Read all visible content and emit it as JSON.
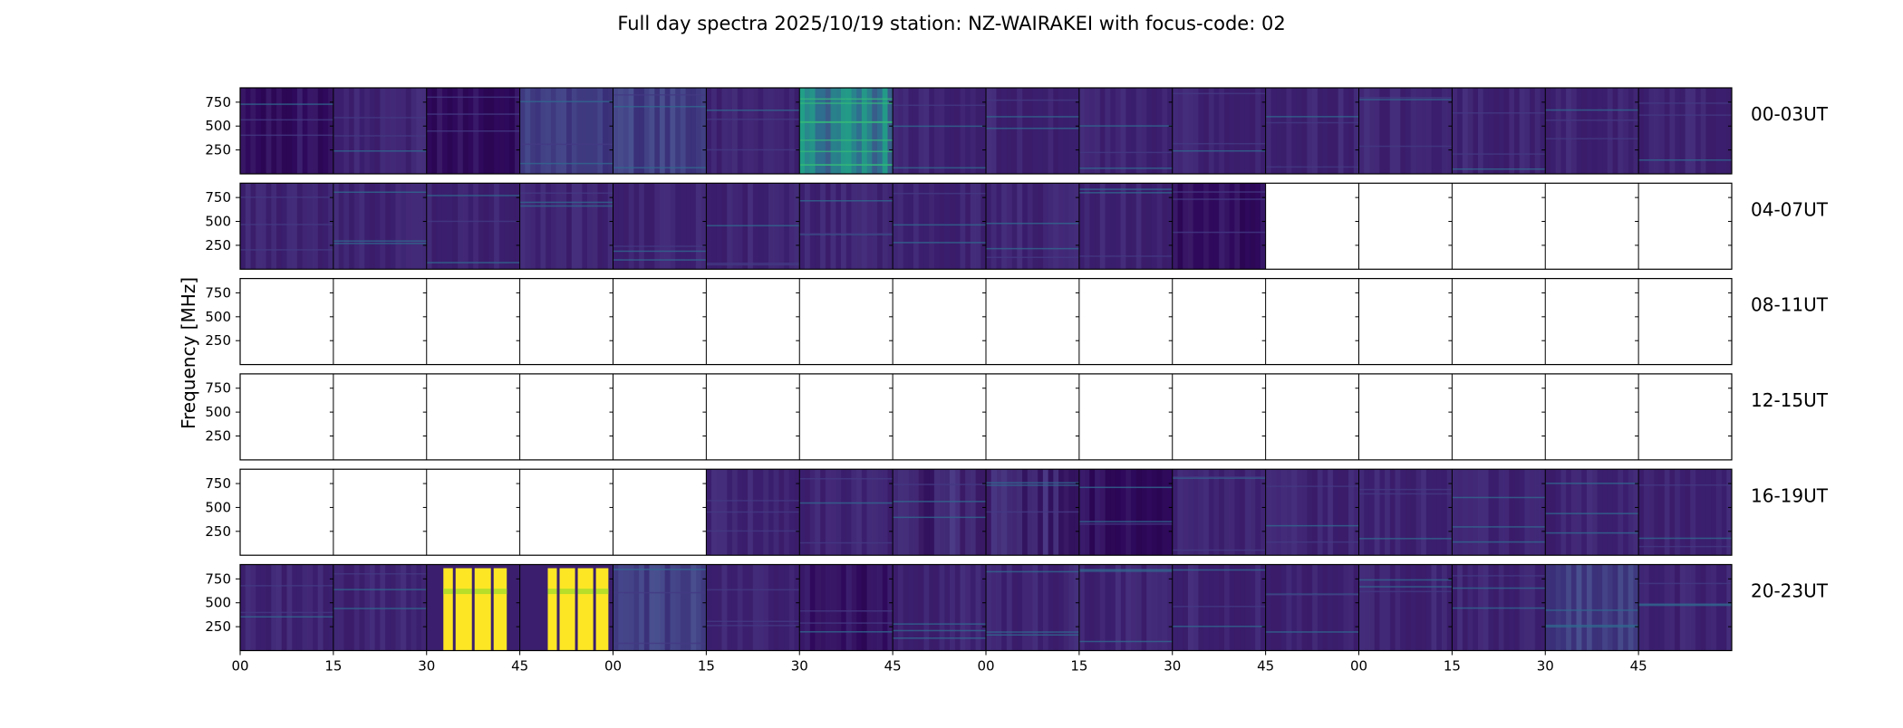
{
  "chart_data": {
    "type": "heatmap",
    "title": "Full day spectra 2025/10/19 station: NZ-WAIRAKEI with focus-code: 02",
    "ylabel": "Frequency [MHz]",
    "xlabel": "",
    "colormap": "viridis",
    "ylim": [
      0,
      900
    ],
    "yticks": [
      250,
      500,
      750
    ],
    "xticks": [
      "00",
      "15",
      "30",
      "45",
      "00",
      "15",
      "30",
      "45",
      "00",
      "15",
      "30",
      "45",
      "00",
      "15",
      "30",
      "45"
    ],
    "rows": [
      {
        "label": "00-03UT",
        "segments": [
          "purple-dark",
          "purple",
          "purple-dark",
          "blue-purple",
          "blue-purple",
          "purple",
          "green-teal",
          "purple",
          "purple",
          "purple",
          "purple",
          "purple",
          "purple",
          "purple",
          "purple",
          "purple"
        ]
      },
      {
        "label": "04-07UT",
        "segments": [
          "purple",
          "purple",
          "purple",
          "purple",
          "purple",
          "purple",
          "purple",
          "purple",
          "purple",
          "purple",
          "purple-dark",
          "none",
          "none",
          "none",
          "none",
          "none"
        ]
      },
      {
        "label": "08-11UT",
        "segments": [
          "none",
          "none",
          "none",
          "none",
          "none",
          "none",
          "none",
          "none",
          "none",
          "none",
          "none",
          "none",
          "none",
          "none",
          "none",
          "none"
        ]
      },
      {
        "label": "12-15UT",
        "segments": [
          "none",
          "none",
          "none",
          "none",
          "none",
          "none",
          "none",
          "none",
          "none",
          "none",
          "none",
          "none",
          "none",
          "none",
          "none",
          "none"
        ]
      },
      {
        "label": "16-19UT",
        "segments": [
          "none",
          "none",
          "none",
          "none",
          "none",
          "purple",
          "purple",
          "purple-banded",
          "purple-banded",
          "purple-dark",
          "purple",
          "purple",
          "purple",
          "purple",
          "purple",
          "purple"
        ]
      },
      {
        "label": "20-23UT",
        "segments": [
          "purple",
          "purple",
          "yellow-partial",
          "yellow-partial",
          "blue-purple",
          "purple",
          "purple-dark",
          "purple",
          "purple",
          "purple",
          "purple",
          "purple",
          "purple",
          "purple",
          "blue-purple",
          "purple"
        ]
      }
    ]
  }
}
